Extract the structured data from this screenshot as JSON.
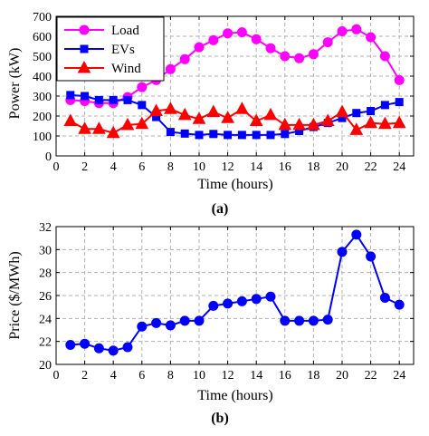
{
  "chart_data": [
    {
      "type": "line",
      "caption": "(a)",
      "xlabel": "Time (hours)",
      "ylabel": "Power (kW)",
      "xlim": [
        0,
        25
      ],
      "ylim": [
        0,
        700
      ],
      "xticks": [
        0,
        2,
        4,
        6,
        8,
        10,
        12,
        14,
        16,
        18,
        20,
        22,
        24
      ],
      "yticks": [
        0,
        100,
        200,
        300,
        400,
        500,
        600,
        700
      ],
      "grid": true,
      "legend_position": "top-left",
      "x": [
        1,
        2,
        3,
        4,
        5,
        6,
        7,
        8,
        9,
        10,
        11,
        12,
        13,
        14,
        15,
        16,
        17,
        18,
        19,
        20,
        21,
        22,
        23,
        24
      ],
      "series": [
        {
          "name": "Load",
          "color": "#ff00ff",
          "marker": "circle",
          "values": [
            280,
            275,
            265,
            265,
            295,
            345,
            380,
            435,
            485,
            545,
            580,
            615,
            620,
            585,
            540,
            500,
            490,
            510,
            570,
            625,
            635,
            595,
            500,
            380
          ]
        },
        {
          "name": "EVs",
          "color": "#0000ff",
          "marker": "square",
          "values": [
            305,
            300,
            280,
            280,
            280,
            255,
            195,
            120,
            112,
            105,
            110,
            105,
            105,
            105,
            105,
            110,
            125,
            145,
            165,
            190,
            215,
            225,
            255,
            270
          ]
        },
        {
          "name": "Wind",
          "color": "#ff0000",
          "marker": "triangle",
          "values": [
            175,
            135,
            135,
            115,
            155,
            160,
            225,
            235,
            205,
            185,
            220,
            190,
            235,
            175,
            205,
            155,
            155,
            155,
            175,
            220,
            130,
            165,
            160,
            165
          ]
        }
      ]
    },
    {
      "type": "line",
      "caption": "(b)",
      "xlabel": "Time (hours)",
      "ylabel": "Price ($/MWh)",
      "xlim": [
        0,
        25
      ],
      "ylim": [
        20,
        32
      ],
      "xticks": [
        0,
        2,
        4,
        6,
        8,
        10,
        12,
        14,
        16,
        18,
        20,
        22,
        24
      ],
      "yticks": [
        20,
        22,
        24,
        26,
        28,
        30,
        32
      ],
      "grid": true,
      "x": [
        1,
        2,
        3,
        4,
        5,
        6,
        7,
        8,
        9,
        10,
        11,
        12,
        13,
        14,
        15,
        16,
        17,
        18,
        19,
        20,
        21,
        22,
        23,
        24
      ],
      "series": [
        {
          "color": "#0000ff",
          "marker": "circle",
          "values": [
            21.7,
            21.8,
            21.4,
            21.2,
            21.5,
            23.3,
            23.6,
            23.4,
            23.8,
            23.8,
            25.1,
            25.3,
            25.5,
            25.7,
            25.9,
            23.8,
            23.8,
            23.8,
            23.9,
            29.8,
            31.3,
            29.4,
            25.8,
            25.2
          ]
        }
      ]
    }
  ]
}
